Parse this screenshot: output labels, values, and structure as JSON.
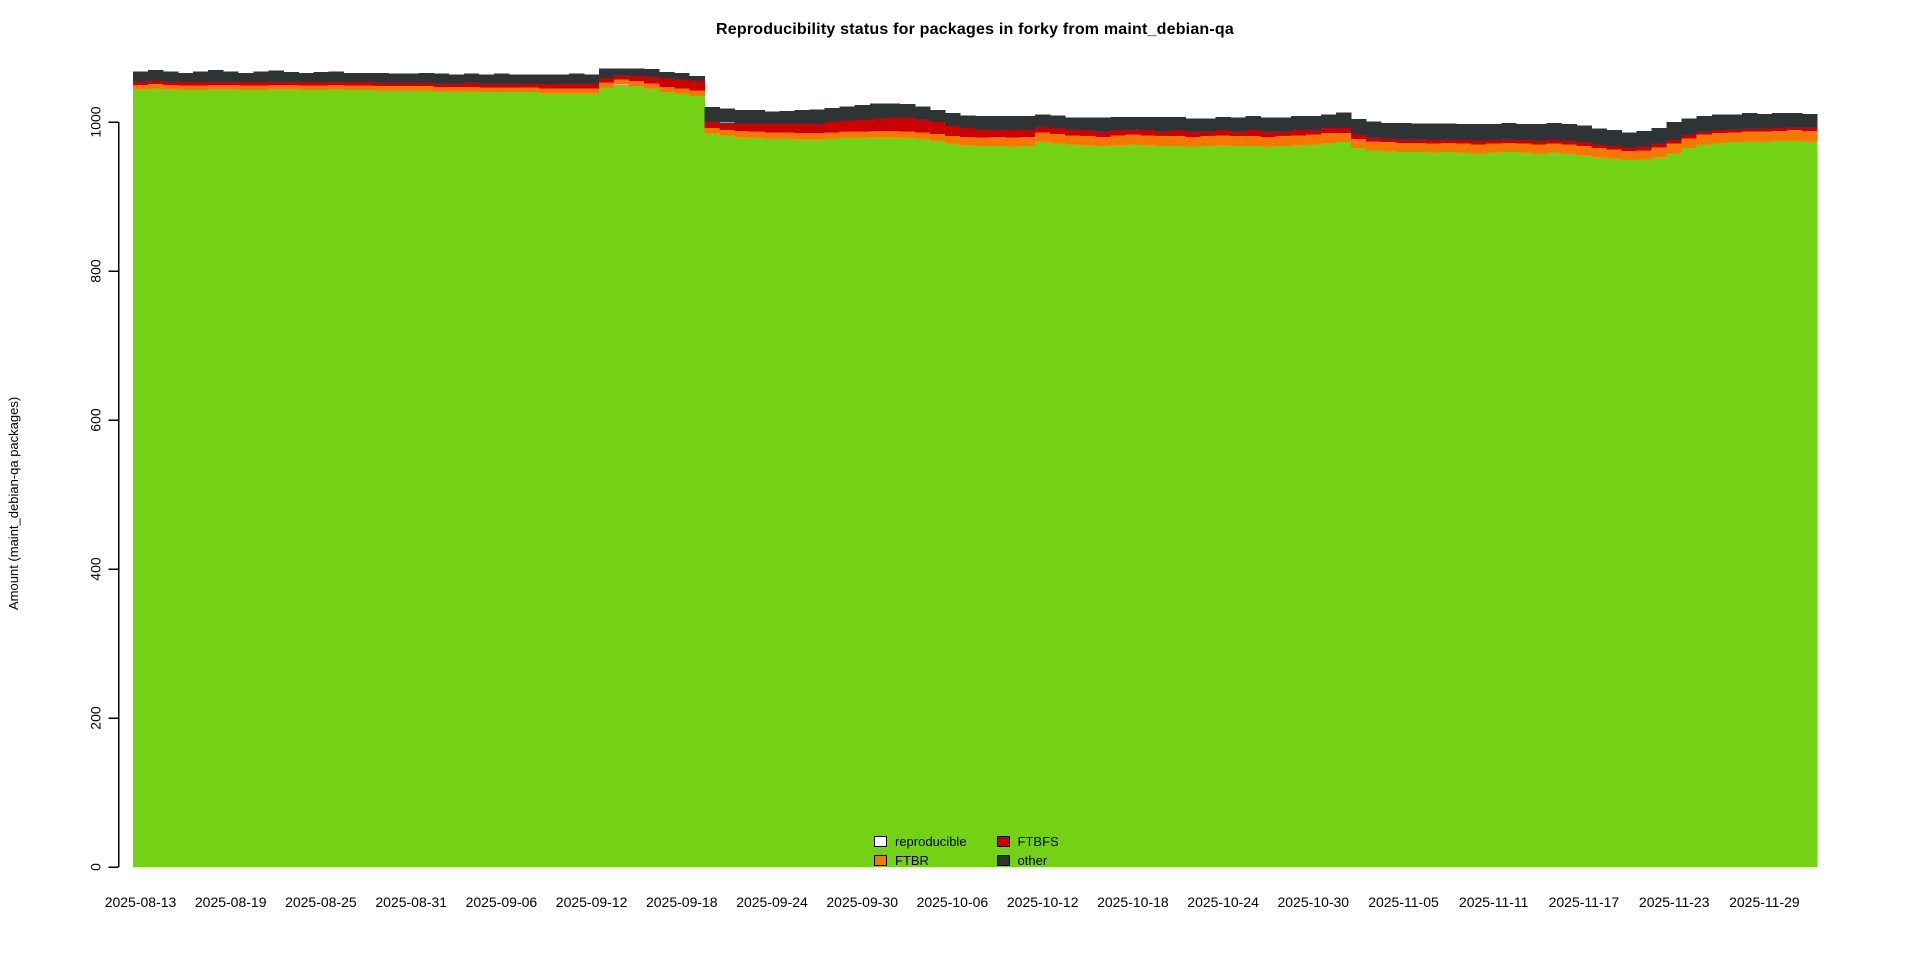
{
  "title": "Reproducibility status for packages in forky from maint_debian-qa",
  "y_axis": {
    "label": "Amount (maint_debian-qa packages)",
    "ticks": [
      "0",
      "200",
      "400",
      "600",
      "800",
      "1000"
    ]
  },
  "x_axis": {
    "tick_labels": [
      "2025-08-13",
      "2025-08-19",
      "2025-08-25",
      "2025-08-31",
      "2025-09-06",
      "2025-09-12",
      "2025-09-18",
      "2025-09-24",
      "2025-09-30",
      "2025-10-06",
      "2025-10-12",
      "2025-10-18",
      "2025-10-24",
      "2025-10-30",
      "2025-11-05",
      "2025-11-11",
      "2025-11-17",
      "2025-11-23",
      "2025-11-29"
    ],
    "days_per_tick": 6
  },
  "legend": {
    "items": [
      {
        "label": "reproducible",
        "fill": "#ffffff",
        "border": "#000000"
      },
      {
        "label": "FTBR",
        "fill": "#f57900",
        "border": "#000000"
      },
      {
        "label": "FTBFS",
        "fill": "#cc0000",
        "border": "#000000"
      },
      {
        "label": "other",
        "fill": "#2e3436",
        "border": "#000000"
      }
    ]
  },
  "chart_data": {
    "type": "bar",
    "stacked": true,
    "title": "Reproducibility status for packages in forky from maint_debian-qa",
    "xlabel": "",
    "ylabel": "Amount (maint_debian-qa packages)",
    "ylim": [
      0,
      1080
    ],
    "grid": false,
    "legend_position": "bottom-center-inside",
    "x_start_date": "2025-08-13",
    "x_tick_labels": [
      "2025-08-13",
      "2025-08-19",
      "2025-08-25",
      "2025-08-31",
      "2025-09-06",
      "2025-09-12",
      "2025-09-18",
      "2025-09-24",
      "2025-09-30",
      "2025-10-06",
      "2025-10-12",
      "2025-10-18",
      "2025-10-24",
      "2025-10-30",
      "2025-11-05",
      "2025-11-11",
      "2025-11-17",
      "2025-11-23",
      "2025-11-29"
    ],
    "y_ticks": [
      0,
      200,
      400,
      600,
      800,
      1000
    ],
    "series": [
      {
        "name": "reproducible",
        "color": "#73d216",
        "values": [
          1044,
          1045,
          1044,
          1043,
          1043,
          1044,
          1044,
          1043,
          1043,
          1044,
          1044,
          1043,
          1043,
          1044,
          1043,
          1043,
          1042,
          1042,
          1042,
          1042,
          1041,
          1041,
          1041,
          1040,
          1040,
          1040,
          1040,
          1039,
          1039,
          1039,
          1039,
          1046,
          1050,
          1048,
          1045,
          1040,
          1038,
          1035,
          985,
          982,
          980,
          979,
          978,
          978,
          977,
          977,
          978,
          979,
          979,
          980,
          980,
          979,
          978,
          975,
          971,
          969,
          968,
          968,
          967,
          968,
          974,
          972,
          970,
          969,
          968,
          969,
          970,
          969,
          968,
          968,
          967,
          968,
          969,
          968,
          968,
          967,
          968,
          969,
          970,
          972,
          973,
          965,
          962,
          961,
          960,
          960,
          959,
          960,
          959,
          958,
          959,
          960,
          959,
          958,
          959,
          958,
          956,
          953,
          951,
          949,
          950,
          953,
          958,
          965,
          970,
          972,
          973,
          974,
          974,
          975,
          975,
          974
        ]
      },
      {
        "name": "FTBR",
        "color": "#f57900",
        "values": [
          6,
          6,
          6,
          6,
          6,
          6,
          6,
          6,
          6,
          6,
          6,
          6,
          6,
          6,
          6,
          6,
          6,
          6,
          6,
          6,
          6,
          6,
          6,
          6,
          6,
          6,
          6,
          6,
          6,
          6,
          6,
          7,
          7,
          7,
          7,
          7,
          7,
          7,
          7,
          7,
          8,
          8,
          8,
          8,
          8,
          8,
          8,
          8,
          8,
          8,
          8,
          8,
          8,
          9,
          10,
          11,
          11,
          12,
          12,
          12,
          12,
          12,
          12,
          12,
          12,
          13,
          13,
          13,
          13,
          13,
          13,
          13,
          13,
          13,
          13,
          13,
          13,
          13,
          13,
          13,
          12,
          12,
          12,
          12,
          12,
          12,
          12,
          12,
          12,
          12,
          12,
          12,
          12,
          12,
          12,
          12,
          12,
          12,
          12,
          12,
          12,
          13,
          13,
          13,
          13,
          13,
          13,
          13,
          13,
          13,
          14,
          14
        ]
      },
      {
        "name": "FTBFS",
        "color": "#cc0000",
        "values": [
          5,
          5,
          5,
          5,
          5,
          5,
          5,
          5,
          5,
          5,
          5,
          5,
          5,
          5,
          5,
          5,
          5,
          5,
          5,
          5,
          5,
          5,
          6,
          6,
          6,
          6,
          6,
          6,
          7,
          7,
          7,
          6,
          6,
          7,
          9,
          12,
          13,
          14,
          9,
          10,
          10,
          11,
          12,
          12,
          13,
          13,
          14,
          15,
          16,
          17,
          18,
          19,
          18,
          16,
          14,
          12,
          11,
          10,
          10,
          9,
          8,
          8,
          8,
          8,
          8,
          7,
          7,
          7,
          7,
          8,
          8,
          7,
          7,
          7,
          8,
          8,
          7,
          7,
          7,
          7,
          7,
          6,
          6,
          5,
          5,
          5,
          5,
          5,
          5,
          5,
          5,
          5,
          5,
          5,
          5,
          5,
          5,
          5,
          5,
          5,
          5,
          5,
          5,
          5,
          4,
          4,
          4,
          4,
          4,
          4,
          4,
          5
        ]
      },
      {
        "name": "other",
        "color": "#2e3436",
        "values": [
          13,
          14,
          13,
          12,
          14,
          15,
          13,
          12,
          14,
          14,
          12,
          12,
          13,
          13,
          12,
          12,
          13,
          12,
          12,
          13,
          13,
          12,
          12,
          12,
          13,
          12,
          12,
          13,
          12,
          13,
          12,
          13,
          9,
          10,
          10,
          8,
          8,
          6,
          19,
          19,
          18,
          18,
          16,
          17,
          18,
          19,
          19,
          19,
          20,
          20,
          19,
          18,
          17,
          16,
          17,
          17,
          18,
          18,
          19,
          19,
          16,
          17,
          16,
          17,
          18,
          18,
          17,
          18,
          19,
          18,
          17,
          17,
          18,
          18,
          19,
          18,
          18,
          19,
          18,
          18,
          21,
          21,
          21,
          21,
          22,
          21,
          22,
          21,
          21,
          22,
          21,
          22,
          21,
          22,
          23,
          22,
          22,
          21,
          21,
          20,
          21,
          21,
          24,
          22,
          21,
          21,
          20,
          21,
          20,
          20,
          19,
          18
        ]
      }
    ]
  }
}
